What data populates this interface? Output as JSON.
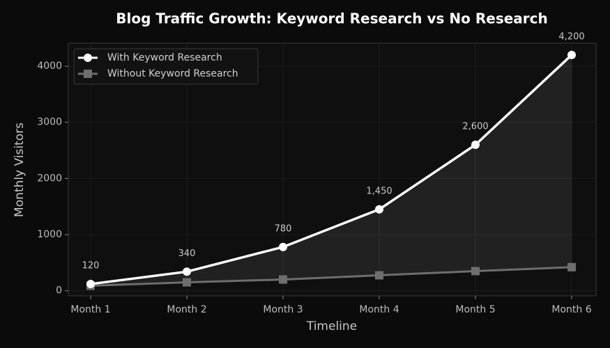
{
  "chart_data": {
    "type": "line",
    "title": "Blog Traffic Growth: Keyword Research vs No Research",
    "x_label": "Timeline",
    "y_label": "Monthly Visitors",
    "categories": [
      "Month 1",
      "Month 2",
      "Month 3",
      "Month 4",
      "Month 5",
      "Month 6"
    ],
    "series": [
      {
        "name": "With Keyword Research",
        "color": "#ffffff",
        "marker": "circle",
        "values": [
          120,
          340,
          780,
          1450,
          2600,
          4200
        ],
        "value_labels": [
          "120",
          "340",
          "780",
          "1,450",
          "2,600",
          "4,200"
        ]
      },
      {
        "name": "Without Keyword Research",
        "color": "#6e6e6e",
        "marker": "square",
        "values": [
          90,
          150,
          200,
          275,
          350,
          420
        ]
      }
    ],
    "ylim": [
      -90,
      4410
    ],
    "yticks": [
      0,
      1000,
      2000,
      3000,
      4000
    ],
    "grid": true,
    "legend": "upper left",
    "fill_between": true
  }
}
